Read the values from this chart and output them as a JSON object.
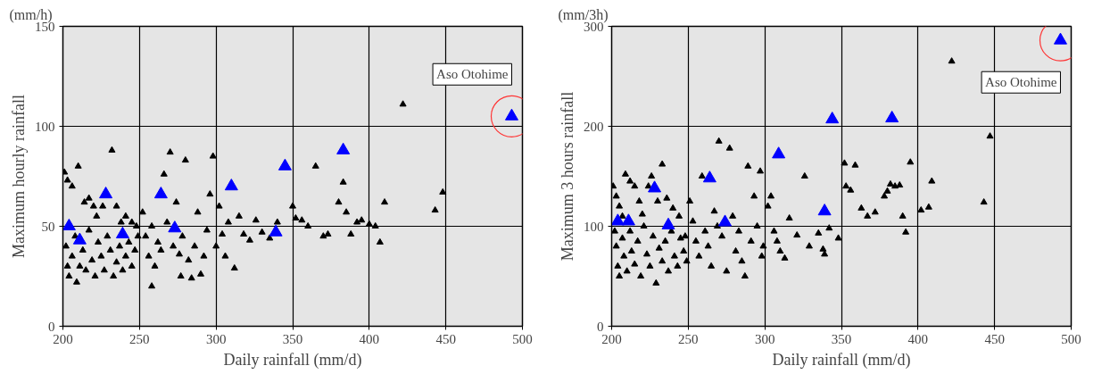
{
  "chart_data": [
    {
      "type": "scatter",
      "title": "(mm/h)",
      "xlabel": "Daily rainfall (mm/d)",
      "ylabel": "Maximum hourly rainfall",
      "xlim": [
        200,
        500
      ],
      "ylim": [
        0,
        150
      ],
      "xticks": [
        200,
        250,
        300,
        350,
        400,
        450,
        500
      ],
      "yticks": [
        0,
        50,
        100,
        150
      ],
      "grid": true,
      "marker": "triangle",
      "annotations": [
        {
          "text": "Aso Otohime",
          "x": 493,
          "y": 105
        }
      ],
      "series": [
        {
          "color": "#000000",
          "x": [
            201,
            203,
            206,
            210,
            214,
            217,
            220,
            222,
            226,
            232,
            235,
            238,
            241,
            245,
            248,
            202,
            203,
            204,
            206,
            208,
            209,
            211,
            213,
            215,
            217,
            219,
            221,
            223,
            225,
            227,
            229,
            231,
            233,
            235,
            237,
            239,
            241,
            243,
            245,
            247,
            249,
            252,
            254,
            256,
            258,
            260,
            262,
            264,
            266,
            268,
            270,
            272,
            274,
            276,
            278,
            280,
            282,
            284,
            286,
            288,
            290,
            292,
            294,
            296,
            298,
            300,
            258,
            277,
            302,
            304,
            306,
            308,
            312,
            315,
            318,
            322,
            326,
            330,
            335,
            340,
            350,
            352,
            356,
            360,
            365,
            370,
            373,
            380,
            383,
            385,
            388,
            392,
            395,
            400,
            404,
            410,
            407,
            422,
            443,
            448
          ],
          "values": [
            77,
            73,
            70,
            80,
            62,
            64,
            60,
            55,
            60,
            88,
            60,
            52,
            55,
            52,
            50,
            40,
            30,
            25,
            35,
            45,
            22,
            30,
            38,
            28,
            48,
            33,
            25,
            42,
            35,
            28,
            45,
            38,
            25,
            32,
            40,
            28,
            35,
            42,
            30,
            38,
            45,
            57,
            45,
            35,
            50,
            30,
            42,
            38,
            76,
            52,
            87,
            40,
            62,
            36,
            45,
            83,
            33,
            24,
            40,
            57,
            26,
            35,
            48,
            66,
            85,
            40,
            20,
            25,
            60,
            46,
            35,
            52,
            29,
            55,
            46,
            43,
            53,
            47,
            44,
            52,
            60,
            54,
            53,
            50,
            80,
            45,
            46,
            62,
            72,
            57,
            46,
            52,
            53,
            51,
            50,
            62,
            42,
            111,
            58,
            67
          ]
        },
        {
          "color": "#0000ff",
          "x": [
            204,
            211,
            228,
            239,
            264,
            273,
            310,
            345,
            383,
            339,
            493
          ],
          "values": [
            50,
            43,
            66,
            46,
            66,
            49,
            70,
            80,
            88,
            47,
            105
          ]
        }
      ]
    },
    {
      "type": "scatter",
      "title": "(mm/3h)",
      "xlabel": "Daily rainfall (mm/d)",
      "ylabel": "Maximum 3 hours rainfall",
      "xlim": [
        200,
        500
      ],
      "ylim": [
        0,
        300
      ],
      "xticks": [
        200,
        250,
        300,
        350,
        400,
        450,
        500
      ],
      "yticks": [
        0,
        100,
        200,
        300
      ],
      "grid": true,
      "marker": "triangle",
      "annotations": [
        {
          "text": "Aso Otohime",
          "x": 493,
          "y": 286
        }
      ],
      "series": [
        {
          "color": "#000000",
          "x": [
            201,
            203,
            205,
            207,
            209,
            212,
            215,
            218,
            220,
            224,
            226,
            230,
            233,
            236,
            240,
            244,
            248,
            202,
            203,
            204,
            205,
            207,
            208,
            210,
            212,
            213,
            215,
            217,
            219,
            221,
            223,
            225,
            227,
            229,
            231,
            233,
            235,
            237,
            239,
            241,
            243,
            245,
            247,
            249,
            251,
            253,
            255,
            257,
            259,
            261,
            263,
            265,
            267,
            269,
            270,
            272,
            275,
            277,
            279,
            281,
            283,
            285,
            287,
            289,
            291,
            293,
            295,
            297,
            299,
            298,
            302,
            304,
            306,
            308,
            310,
            313,
            316,
            321,
            326,
            329,
            335,
            338,
            339,
            342,
            348,
            352,
            353,
            356,
            359,
            363,
            367,
            372,
            378,
            380,
            382,
            385,
            388,
            390,
            392,
            395,
            402,
            407,
            409,
            422,
            443,
            447
          ],
          "values": [
            140,
            130,
            120,
            110,
            152,
            145,
            140,
            125,
            112,
            140,
            150,
            125,
            162,
            128,
            118,
            110,
            90,
            95,
            80,
            60,
            50,
            88,
            70,
            55,
            95,
            75,
            62,
            85,
            50,
            100,
            72,
            60,
            90,
            43,
            78,
            65,
            85,
            55,
            95,
            70,
            60,
            88,
            75,
            65,
            125,
            105,
            85,
            70,
            150,
            95,
            80,
            60,
            115,
            100,
            185,
            90,
            55,
            178,
            110,
            75,
            95,
            65,
            50,
            160,
            85,
            130,
            100,
            155,
            80,
            70,
            120,
            130,
            95,
            85,
            75,
            68,
            108,
            91,
            150,
            80,
            93,
            77,
            72,
            98,
            88,
            163,
            140,
            136,
            161,
            118,
            110,
            114,
            130,
            135,
            142,
            140,
            141,
            110,
            94,
            164,
            116,
            119,
            145,
            265,
            124,
            190
          ]
        },
        {
          "color": "#0000ff",
          "x": [
            204,
            211,
            228,
            237,
            264,
            274,
            309,
            339,
            344,
            383,
            493
          ],
          "values": [
            105,
            105,
            138,
            101,
            148,
            104,
            172,
            115,
            207,
            208,
            286
          ]
        }
      ]
    }
  ]
}
